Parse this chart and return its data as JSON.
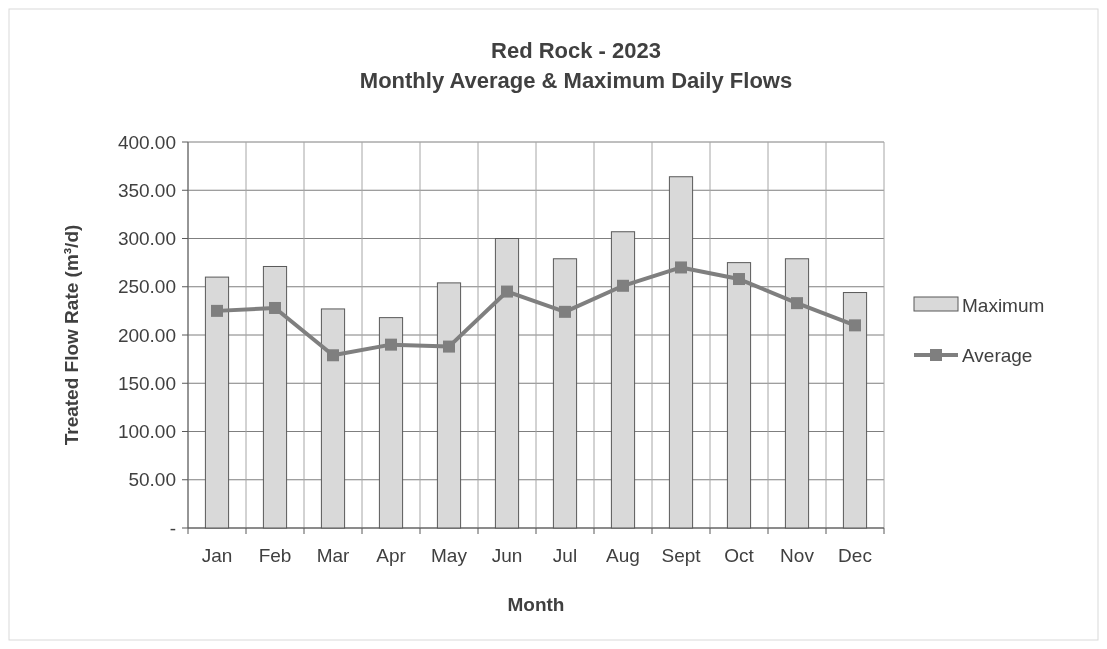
{
  "chart_data": {
    "type": "bar",
    "title": "Red Rock - 2023",
    "subtitle": "Monthly Average & Maximum Daily Flows",
    "xlabel": "Month",
    "ylabel": "Treated Flow Rate (m³/d)",
    "categories": [
      "Jan",
      "Feb",
      "Mar",
      "Apr",
      "May",
      "Jun",
      "Jul",
      "Aug",
      "Sept",
      "Oct",
      "Nov",
      "Dec"
    ],
    "series": [
      {
        "name": "Maximum",
        "color": "#d9d9d9",
        "values": [
          260,
          271,
          227,
          218,
          254,
          300,
          279,
          307,
          364,
          275,
          279,
          244
        ]
      },
      {
        "name": "Average",
        "type": "line",
        "color": "#7f7f7f",
        "marker": "square",
        "values": [
          225,
          228,
          179,
          190,
          188,
          245,
          224,
          251,
          270,
          258,
          233,
          210
        ]
      }
    ],
    "ylim": [
      0,
      400
    ],
    "yticks": [
      {
        "value": 0,
        "label": "-"
      },
      {
        "value": 50,
        "label": "50.00"
      },
      {
        "value": 100,
        "label": "100.00"
      },
      {
        "value": 150,
        "label": "150.00"
      },
      {
        "value": 200,
        "label": "200.00"
      },
      {
        "value": 250,
        "label": "250.00"
      },
      {
        "value": 300,
        "label": "300.00"
      },
      {
        "value": 350,
        "label": "350.00"
      },
      {
        "value": 400,
        "label": "400.00"
      }
    ],
    "grid": true,
    "legend": "right"
  }
}
